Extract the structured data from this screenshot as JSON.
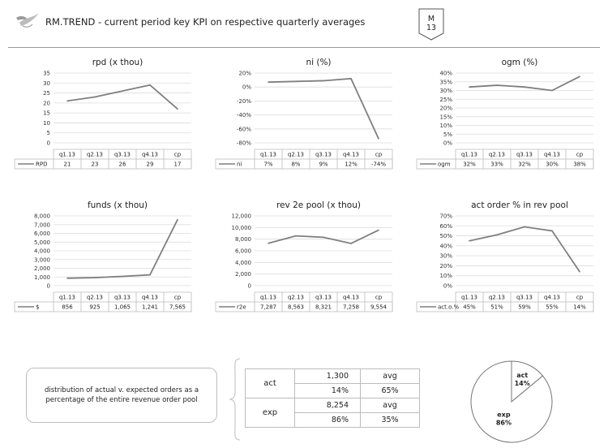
{
  "header": {
    "title": "RM.TREND - current period key KPI on respective quarterly averages",
    "month_label": "M",
    "month_value": "13"
  },
  "chart_data": [
    {
      "id": "rpd",
      "type": "line",
      "title": "rpd (x thou)",
      "categories": [
        "q1.13",
        "q2.13",
        "q3.13",
        "q4.13",
        "cp"
      ],
      "series": [
        {
          "name": "RPD",
          "values": [
            21,
            23,
            26,
            29,
            17
          ]
        }
      ],
      "ylim": [
        0,
        35
      ],
      "yticks": [
        "0",
        "5",
        "10",
        "15",
        "20",
        "25",
        "30",
        "35"
      ],
      "table_values": [
        "21",
        "23",
        "26",
        "29",
        "17"
      ],
      "grid": true
    },
    {
      "id": "ni",
      "type": "line",
      "title": "ni (%)",
      "categories": [
        "q1.13",
        "q2.13",
        "q3.13",
        "q4.13",
        "cp"
      ],
      "series": [
        {
          "name": "ni",
          "values": [
            7,
            8,
            9,
            12,
            -74
          ]
        }
      ],
      "ylim": [
        -80,
        20
      ],
      "yticks": [
        "-80%",
        "-60%",
        "-40%",
        "-20%",
        "0%",
        "20%"
      ],
      "table_values": [
        "7%",
        "8%",
        "9%",
        "12%",
        "-74%"
      ],
      "grid": true
    },
    {
      "id": "ogm",
      "type": "line",
      "title": "ogm (%)",
      "categories": [
        "q1.13",
        "q2.13",
        "q3.13",
        "q4.13",
        "cp"
      ],
      "series": [
        {
          "name": "ogm",
          "values": [
            32,
            33,
            32,
            30,
            38
          ]
        }
      ],
      "ylim": [
        0,
        40
      ],
      "yticks": [
        "0%",
        "5%",
        "10%",
        "15%",
        "20%",
        "25%",
        "30%",
        "35%",
        "40%"
      ],
      "table_values": [
        "32%",
        "33%",
        "32%",
        "30%",
        "38%"
      ],
      "grid": true
    },
    {
      "id": "funds",
      "type": "line",
      "title": "funds (x thou)",
      "categories": [
        "q1.13",
        "q2.13",
        "q3.13",
        "q4.13",
        "cp"
      ],
      "series": [
        {
          "name": "$",
          "values": [
            856,
            925,
            1065,
            1241,
            7565
          ]
        }
      ],
      "ylim": [
        0,
        8000
      ],
      "yticks": [
        "0",
        "1,000",
        "2,000",
        "3,000",
        "4,000",
        "5,000",
        "6,000",
        "7,000",
        "8,000"
      ],
      "table_values": [
        "856",
        "925",
        "1,065",
        "1,241",
        "7,565"
      ],
      "grid": true
    },
    {
      "id": "rev2e",
      "type": "line",
      "title": "rev 2e pool (x thou)",
      "categories": [
        "q1.13",
        "q2.13",
        "q3.13",
        "q4.13",
        "cp"
      ],
      "series": [
        {
          "name": "r2e",
          "values": [
            7287,
            8563,
            8321,
            7258,
            9554
          ]
        }
      ],
      "ylim": [
        0,
        12000
      ],
      "yticks": [
        "0",
        "2,000",
        "4,000",
        "6,000",
        "8,000",
        "10,000",
        "12,000"
      ],
      "table_values": [
        "7,287",
        "8,563",
        "8,321",
        "7,258",
        "9,554"
      ],
      "grid": true
    },
    {
      "id": "actorder",
      "type": "line",
      "title": "act order % in rev pool",
      "categories": [
        "q1.13",
        "q2.13",
        "q3.13",
        "q4.13",
        "cp"
      ],
      "series": [
        {
          "name": "act.o.%",
          "values": [
            45,
            51,
            59,
            55,
            14
          ]
        }
      ],
      "ylim": [
        0,
        70
      ],
      "yticks": [
        "0%",
        "10%",
        "20%",
        "30%",
        "40%",
        "50%",
        "60%",
        "70%"
      ],
      "table_values": [
        "45%",
        "51%",
        "59%",
        "55%",
        "14%"
      ],
      "grid": true
    },
    {
      "id": "distribution",
      "type": "pie",
      "slices": [
        {
          "label": "act",
          "value": 14,
          "display": "14%"
        },
        {
          "label": "exp",
          "value": 86,
          "display": "86%"
        }
      ]
    }
  ],
  "note": "distribution of actual v. expected orders as a percentage of the entire revenue order pool",
  "dist_table": {
    "act": {
      "label": "act",
      "count": "1,300",
      "pct": "14%",
      "avg_label": "avg",
      "avg": "65%"
    },
    "exp": {
      "label": "exp",
      "count": "8,254",
      "pct": "86%",
      "avg_label": "avg",
      "avg": "35%"
    }
  },
  "colors": {
    "line": "#7f7f7f",
    "grid": "#dcdcdc",
    "border": "#bdbdbd"
  }
}
